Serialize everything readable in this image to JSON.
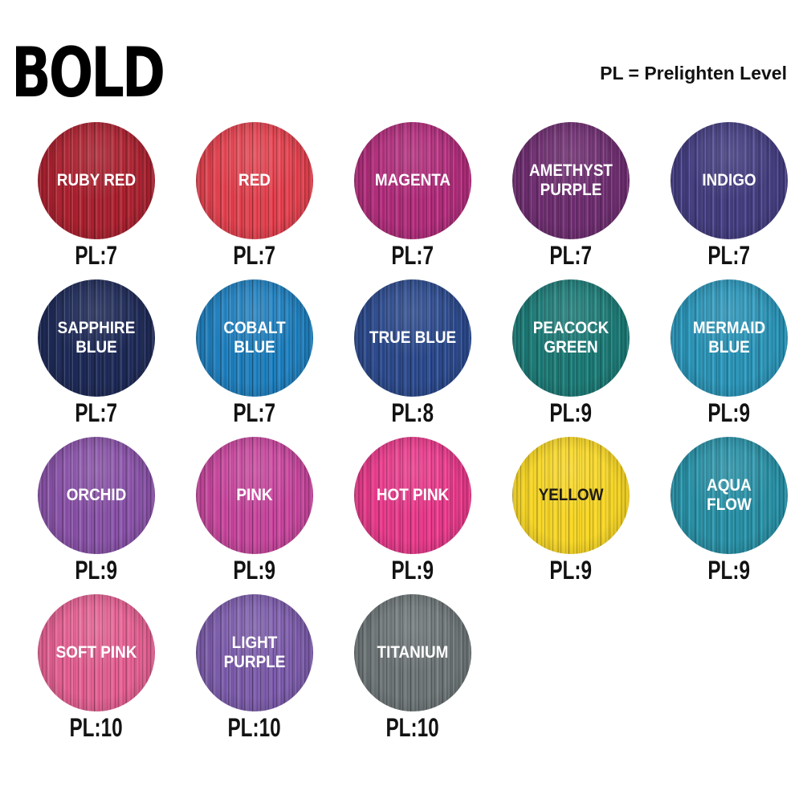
{
  "header": {
    "title": "BOLD",
    "legend": "PL = Prelighten Level"
  },
  "colors": {
    "page_background": "#ffffff",
    "title_text": "#000000",
    "pl_label_text": "#121212"
  },
  "swatches": [
    {
      "name": "RUBY RED",
      "lines": [
        "RUBY RED"
      ],
      "pl": "PL:7",
      "color": "#ad2130",
      "text_color": "#ffffff"
    },
    {
      "name": "RED",
      "lines": [
        "RED"
      ],
      "pl": "PL:7",
      "color": "#e2414e",
      "text_color": "#ffffff"
    },
    {
      "name": "MAGENTA",
      "lines": [
        "MAGENTA"
      ],
      "pl": "PL:7",
      "color": "#b02d7b",
      "text_color": "#ffffff"
    },
    {
      "name": "AMETHYST PURPLE",
      "lines": [
        "AMETHYST",
        "PURPLE"
      ],
      "pl": "PL:7",
      "color": "#6e2f70",
      "text_color": "#ffffff"
    },
    {
      "name": "INDIGO",
      "lines": [
        "INDIGO"
      ],
      "pl": "PL:7",
      "color": "#453f80",
      "text_color": "#ffffff"
    },
    {
      "name": "SAPPHIRE BLUE",
      "lines": [
        "SAPPHIRE",
        "BLUE"
      ],
      "pl": "PL:7",
      "color": "#1f2b59",
      "text_color": "#ffffff"
    },
    {
      "name": "COBALT BLUE",
      "lines": [
        "COBALT",
        "BLUE"
      ],
      "pl": "PL:7",
      "color": "#1f7fbe",
      "text_color": "#ffffff"
    },
    {
      "name": "TRUE BLUE",
      "lines": [
        "TRUE BLUE"
      ],
      "pl": "PL:8",
      "color": "#2c4a8c",
      "text_color": "#ffffff"
    },
    {
      "name": "PEACOCK GREEN",
      "lines": [
        "PEACOCK",
        "GREEN"
      ],
      "pl": "PL:9",
      "color": "#1e7a76",
      "text_color": "#ffffff"
    },
    {
      "name": "MERMAID BLUE",
      "lines": [
        "MERMAID",
        "BLUE"
      ],
      "pl": "PL:9",
      "color": "#2d94b6",
      "text_color": "#ffffff"
    },
    {
      "name": "ORCHID",
      "lines": [
        "ORCHID"
      ],
      "pl": "PL:9",
      "color": "#8a52a9",
      "text_color": "#ffffff"
    },
    {
      "name": "PINK",
      "lines": [
        "PINK"
      ],
      "pl": "PL:9",
      "color": "#c7469d",
      "text_color": "#ffffff"
    },
    {
      "name": "HOT PINK",
      "lines": [
        "HOT PINK"
      ],
      "pl": "PL:9",
      "color": "#e63a8a",
      "text_color": "#ffffff"
    },
    {
      "name": "YELLOW",
      "lines": [
        "YELLOW"
      ],
      "pl": "PL:9",
      "color": "#f4d428",
      "text_color": "#1e1c15"
    },
    {
      "name": "AQUA FLOW",
      "lines": [
        "AQUA",
        "FLOW"
      ],
      "pl": "PL:9",
      "color": "#2b90a5",
      "text_color": "#ffffff"
    },
    {
      "name": "SOFT PINK",
      "lines": [
        "SOFT PINK"
      ],
      "pl": "PL:10",
      "color": "#e55f92",
      "text_color": "#ffffff"
    },
    {
      "name": "LIGHT PURPLE",
      "lines": [
        "LIGHT",
        "PURPLE"
      ],
      "pl": "PL:10",
      "color": "#7c5cab",
      "text_color": "#ffffff"
    },
    {
      "name": "TITANIUM",
      "lines": [
        "TITANIUM"
      ],
      "pl": "PL:10",
      "color": "#6d7577",
      "text_color": "#ffffff"
    }
  ]
}
